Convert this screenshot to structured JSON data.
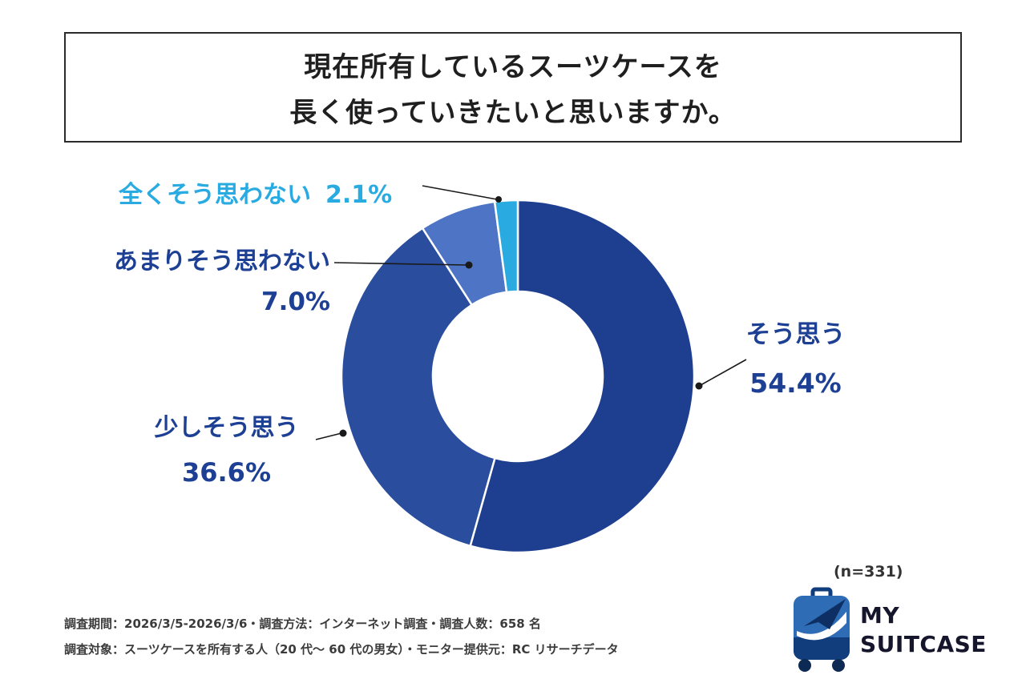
{
  "title": {
    "line1": "現在所有しているスーツケースを",
    "line2": "長く使っていきたいと思いますか。"
  },
  "chart_data": {
    "type": "pie",
    "title": "現在所有しているスーツケースを長く使っていきたいと思いますか。",
    "donut": true,
    "donut_hole_ratio": 0.48,
    "start_angle_deg": -90,
    "direction": "clockwise",
    "legend": "none",
    "sample_note": "(n=331)",
    "slices": [
      {
        "label": "そう思う",
        "value": 54.4,
        "display": "54.4%",
        "color": "#1e3e8f",
        "label_color": "#1d4094"
      },
      {
        "label": "少しそう思う",
        "value": 36.6,
        "display": "36.6%",
        "color": "#2a4d9e",
        "label_color": "#1d4094"
      },
      {
        "label": "あまりそう思わない",
        "value": 7.0,
        "display": "7.0%",
        "color": "#4d74c5",
        "label_color": "#1d4094"
      },
      {
        "label": "全くそう思わない",
        "value": 2.1,
        "display": "2.1%",
        "color": "#29abe2",
        "label_color": "#29abe2"
      }
    ]
  },
  "footer": {
    "line1": "調査期間：2026/3/5-2026/3/6・調査方法：インターネット調査・調査人数：658 名",
    "line2": "調査対象：スーツケースを所有する人（20 代〜 60 代の男女）・モニター提供元：RC リサーチデータ"
  },
  "logo": {
    "line1": "MY",
    "line2": "SUITCASE"
  },
  "colors": {
    "title_text": "#1f1f1f",
    "label_navy": "#1d4094",
    "label_sky": "#29abe2",
    "leader_line": "#1a1a1a",
    "footnote_text": "#3b3b3b",
    "logo_blue": "#2f6cb6",
    "logo_navy": "#123d7d"
  }
}
